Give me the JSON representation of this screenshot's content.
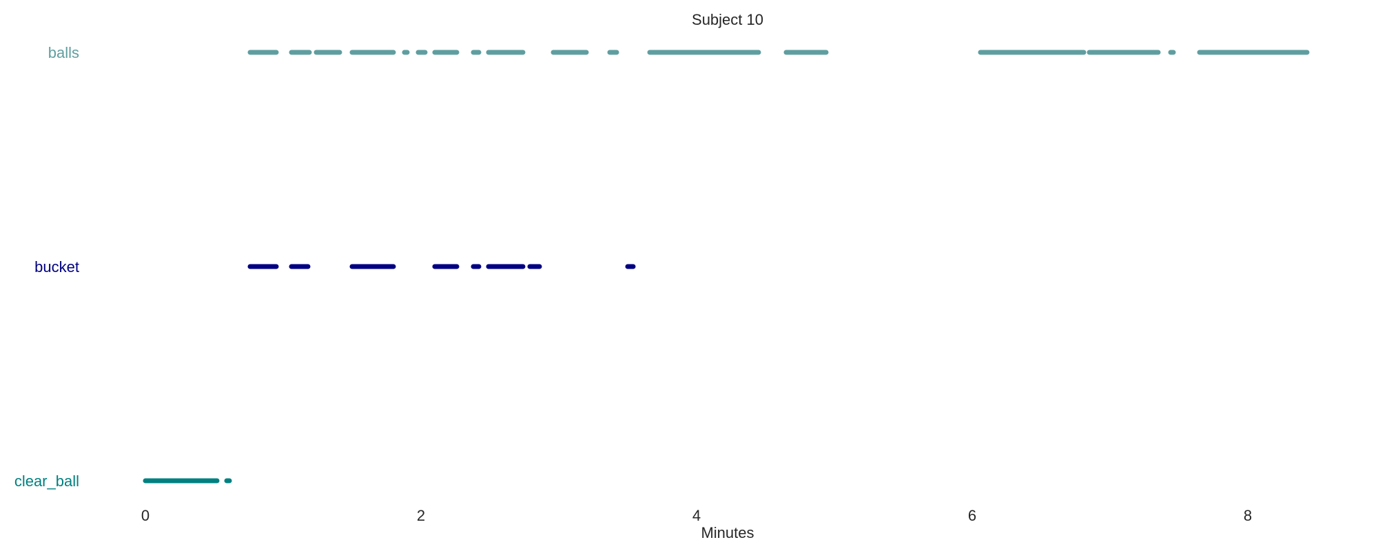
{
  "chart_data": {
    "type": "timeline",
    "title": "Subject 10",
    "xlabel": "Minutes",
    "ylabel": "",
    "xlim": [
      -0.2,
      8.75
    ],
    "xticks": [
      0,
      2,
      4,
      6,
      8
    ],
    "grid": false,
    "legend": "none",
    "rows": [
      {
        "label": "balls",
        "color": "#5f9ea0",
        "segments": [
          [
            0.76,
            0.95
          ],
          [
            1.06,
            1.19
          ],
          [
            1.24,
            1.41
          ],
          [
            1.5,
            1.8
          ],
          [
            1.88,
            1.9
          ],
          [
            1.98,
            2.03
          ],
          [
            2.1,
            2.26
          ],
          [
            2.38,
            2.42
          ],
          [
            2.49,
            2.74
          ],
          [
            2.96,
            3.2
          ],
          [
            3.37,
            3.42
          ],
          [
            3.66,
            4.45
          ],
          [
            4.65,
            4.94
          ],
          [
            6.06,
            6.81
          ],
          [
            6.85,
            7.35
          ],
          [
            7.44,
            7.46
          ],
          [
            7.65,
            8.43
          ]
        ]
      },
      {
        "label": "bucket",
        "color": "#000080",
        "segments": [
          [
            0.76,
            0.95
          ],
          [
            1.06,
            1.18
          ],
          [
            1.5,
            1.8
          ],
          [
            2.1,
            2.26
          ],
          [
            2.38,
            2.42
          ],
          [
            2.49,
            2.74
          ],
          [
            2.79,
            2.86
          ],
          [
            3.5,
            3.54
          ]
        ]
      },
      {
        "label": "clear_ball",
        "color": "#008080",
        "segments": [
          [
            0.0,
            0.52
          ],
          [
            0.59,
            0.61
          ]
        ]
      }
    ]
  }
}
